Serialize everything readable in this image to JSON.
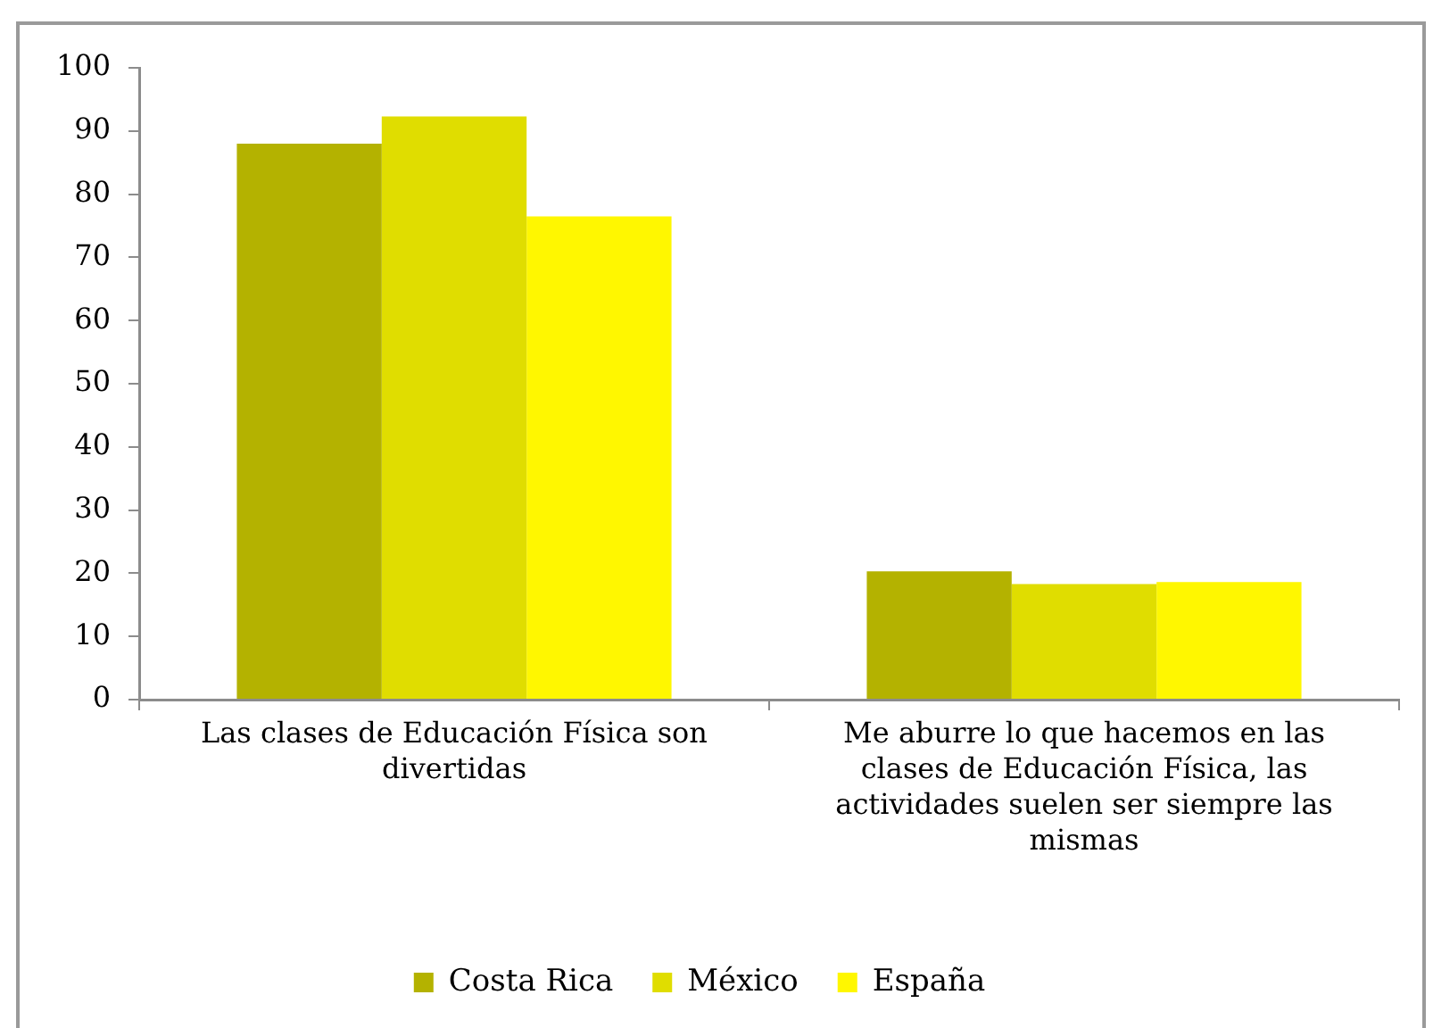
{
  "chart_data": {
    "type": "bar",
    "categories": [
      "Las clases de Educación Física son divertidas",
      "Me aburre lo que hacemos en las clases de Educación Física, las actividades suelen ser siempre las mismas"
    ],
    "series": [
      {
        "name": "Costa Rica",
        "color": "#b4b200",
        "values": [
          88,
          20.3
        ]
      },
      {
        "name": "México",
        "color": "#e0dd00",
        "values": [
          92.3,
          18.3
        ]
      },
      {
        "name": "España",
        "color": "#fff700",
        "values": [
          76.5,
          18.6
        ]
      }
    ],
    "ylim": [
      0,
      100
    ],
    "yticks": [
      0,
      10,
      20,
      30,
      40,
      50,
      60,
      70,
      80,
      90,
      100
    ],
    "legend": "bottom"
  }
}
